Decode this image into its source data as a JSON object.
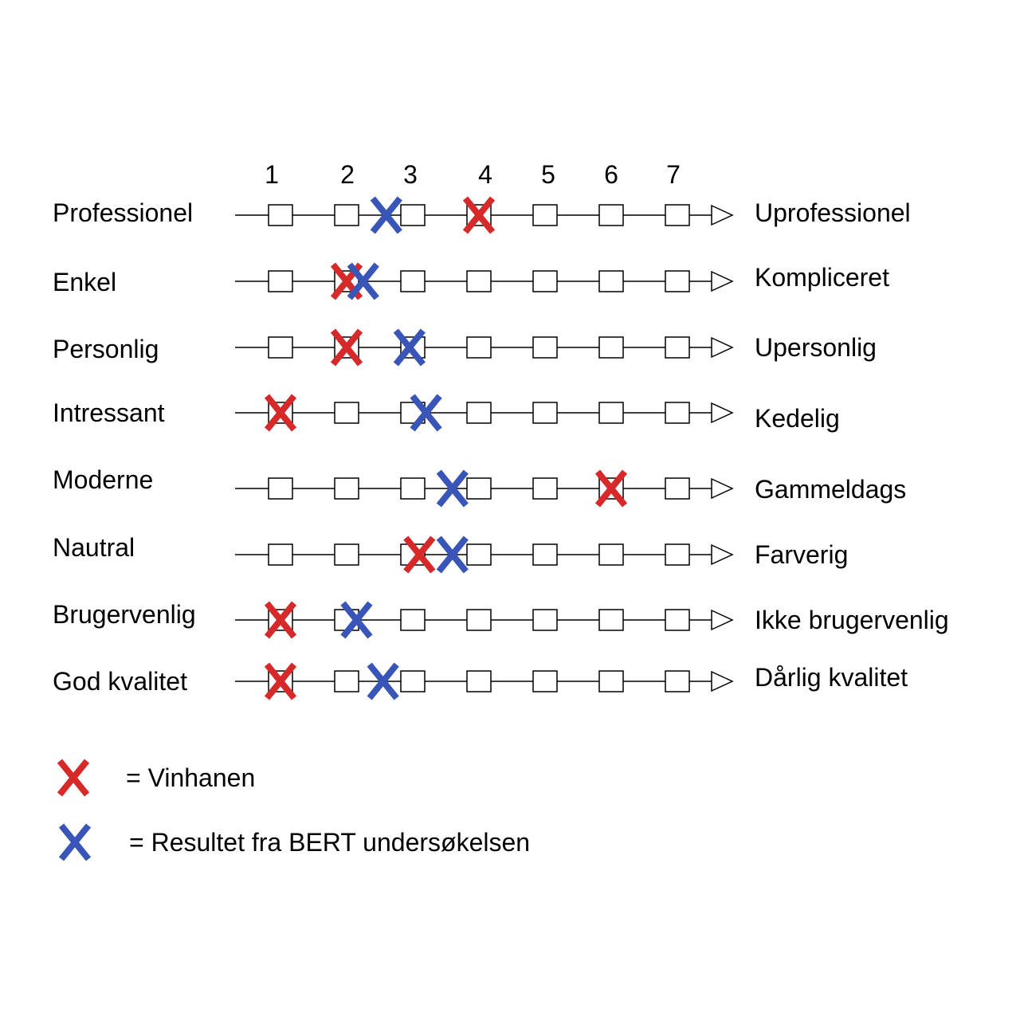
{
  "scale": [
    "1",
    "2",
    "3",
    "4",
    "5",
    "6",
    "7"
  ],
  "rows": [
    {
      "left": "Professionel",
      "right": "Uprofessionel",
      "red": 4,
      "blue": 2.6
    },
    {
      "left": "Enkel",
      "right": "Kompliceret",
      "red": 2,
      "blue": 2.25
    },
    {
      "left": "Personlig",
      "right": "Upersonlig",
      "red": 2,
      "blue": 2.95
    },
    {
      "left": "Intressant",
      "right": "Kedelig",
      "red": 1,
      "blue": 3.2
    },
    {
      "left": "Moderne",
      "right": "Gammeldags",
      "red": 6,
      "blue": 3.6
    },
    {
      "left": "Nautral",
      "right": "Farverig",
      "red": 3.1,
      "blue": 3.6
    },
    {
      "left": "Brugervenlig",
      "right": "Ikke brugervenlig",
      "red": 1,
      "blue": 2.15
    },
    {
      "left": "God kvalitet",
      "right": "Dårlig kvalitet",
      "red": 1,
      "blue": 2.55
    }
  ],
  "legend": {
    "red_label": "= Vinhanen",
    "blue_label": "= Resultet fra BERT undersøkelsen"
  },
  "colors": {
    "red": "#d62a2a",
    "blue": "#3a55b8",
    "line": "#000000"
  }
}
